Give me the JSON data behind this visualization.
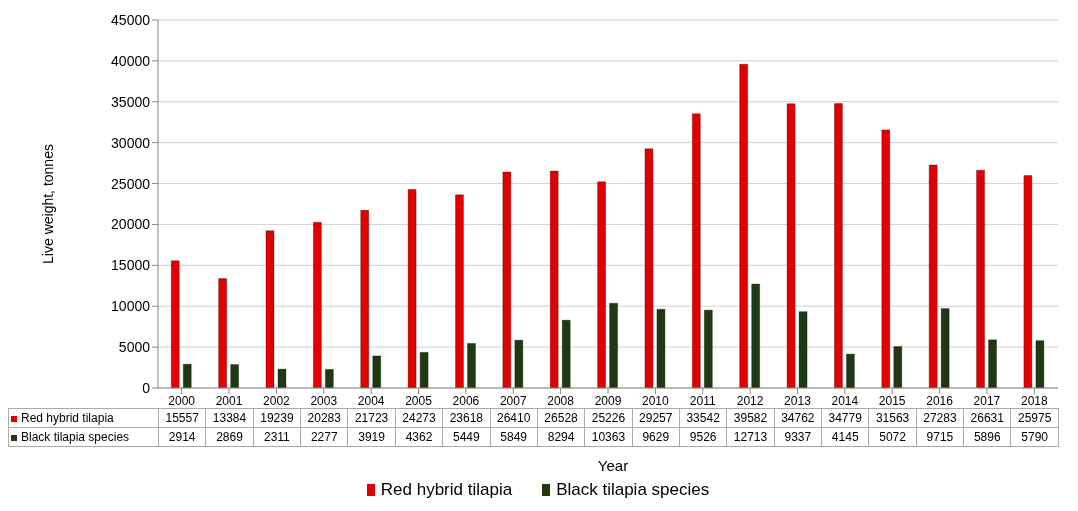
{
  "chart_data": {
    "type": "bar",
    "xlabel": "Year",
    "ylabel": "Live weight, tonnes",
    "categories": [
      "2000",
      "2001",
      "2002",
      "2003",
      "2004",
      "2005",
      "2006",
      "2007",
      "2008",
      "2009",
      "2010",
      "2011",
      "2012",
      "2013",
      "2014",
      "2015",
      "2016",
      "2017",
      "2018"
    ],
    "series": [
      {
        "name": "Red hybrid tilapia",
        "color": "#e30000",
        "values": [
          15557,
          13384,
          19239,
          20283,
          21723,
          24273,
          23618,
          26410,
          26528,
          25226,
          29257,
          33542,
          39582,
          34762,
          34779,
          31563,
          27283,
          26631,
          25975
        ]
      },
      {
        "name": "Black tilapia species",
        "color": "#1f3a12",
        "values": [
          2914,
          2869,
          2311,
          2277,
          3919,
          4362,
          5449,
          5849,
          8294,
          10363,
          9629,
          9526,
          12713,
          9337,
          4145,
          5072,
          9715,
          5896,
          5790
        ]
      }
    ],
    "ylim": [
      0,
      45000
    ],
    "yticks": [
      0,
      5000,
      10000,
      15000,
      20000,
      25000,
      30000,
      35000,
      40000,
      45000
    ],
    "grid": "y",
    "legend": "bottom",
    "data_labels": true
  }
}
